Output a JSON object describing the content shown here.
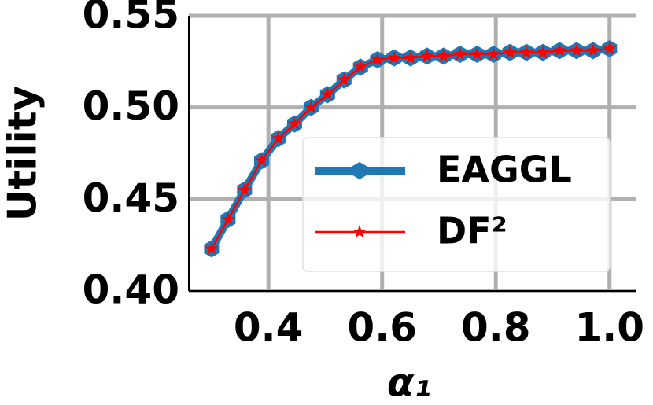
{
  "chart_data": {
    "type": "line",
    "x_label": "α₁",
    "y_label": "Utility",
    "x": [
      0.3,
      0.329,
      0.358,
      0.388,
      0.417,
      0.446,
      0.475,
      0.504,
      0.533,
      0.562,
      0.592,
      0.621,
      0.65,
      0.679,
      0.708,
      0.737,
      0.767,
      0.796,
      0.825,
      0.854,
      0.883,
      0.912,
      0.942,
      0.971,
      1.0
    ],
    "series": [
      {
        "name": "EAGGL",
        "color": "#1f77b4",
        "values": [
          0.423,
          0.439,
          0.455,
          0.471,
          0.483,
          0.491,
          0.5,
          0.507,
          0.515,
          0.522,
          0.526,
          0.527,
          0.527,
          0.528,
          0.528,
          0.529,
          0.529,
          0.529,
          0.53,
          0.53,
          0.53,
          0.531,
          0.531,
          0.531,
          0.532
        ]
      },
      {
        "name": "DF²",
        "color": "#ff0000",
        "values": [
          0.423,
          0.439,
          0.455,
          0.471,
          0.483,
          0.491,
          0.5,
          0.507,
          0.515,
          0.522,
          0.526,
          0.527,
          0.527,
          0.528,
          0.528,
          0.529,
          0.529,
          0.529,
          0.53,
          0.53,
          0.53,
          0.531,
          0.531,
          0.531,
          0.532
        ]
      }
    ],
    "xlim": [
      0.26,
      1.046
    ],
    "ylim": [
      0.4,
      0.55
    ],
    "xticks": [
      0.4,
      0.6,
      0.8,
      {
        "value": 1.0,
        "label": "1.0"
      }
    ],
    "yticks": [
      {
        "value": 0.4,
        "label": "0.40"
      },
      {
        "value": 0.45,
        "label": "0.45"
      },
      {
        "value": 0.5,
        "label": "0.50"
      },
      {
        "value": 0.55,
        "label": "0.55"
      }
    ],
    "grid": true,
    "legend": "lower right"
  }
}
